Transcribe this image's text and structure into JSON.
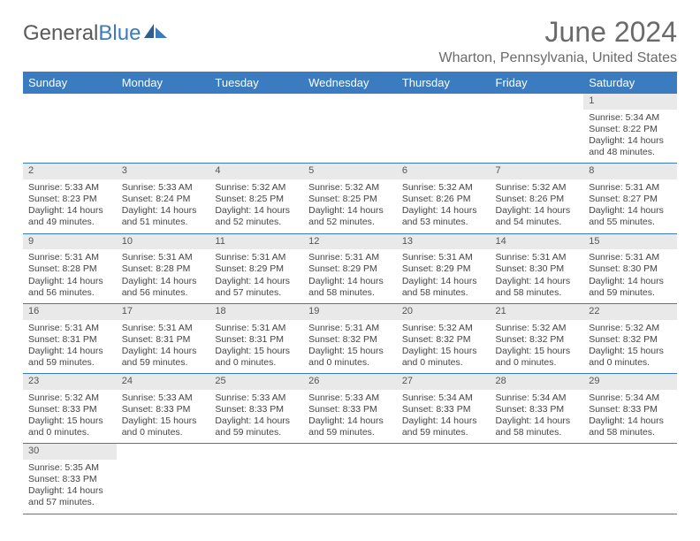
{
  "logo": {
    "part1": "General",
    "part2": "Blue"
  },
  "title": "June 2024",
  "location": "Wharton, Pennsylvania, United States",
  "colors": {
    "header_bg": "#3b7bbf",
    "header_text": "#ffffff",
    "daynum_bg": "#e9e9e9",
    "cell_border": "#3b7bbf",
    "text": "#444444",
    "title_text": "#6a6a6a"
  },
  "weekdays": [
    "Sunday",
    "Monday",
    "Tuesday",
    "Wednesday",
    "Thursday",
    "Friday",
    "Saturday"
  ],
  "weeks": [
    {
      "days": [
        null,
        null,
        null,
        null,
        null,
        null,
        {
          "n": "1",
          "sunrise": "Sunrise: 5:34 AM",
          "sunset": "Sunset: 8:22 PM",
          "daylight": "Daylight: 14 hours and 48 minutes."
        }
      ]
    },
    {
      "days": [
        {
          "n": "2",
          "sunrise": "Sunrise: 5:33 AM",
          "sunset": "Sunset: 8:23 PM",
          "daylight": "Daylight: 14 hours and 49 minutes."
        },
        {
          "n": "3",
          "sunrise": "Sunrise: 5:33 AM",
          "sunset": "Sunset: 8:24 PM",
          "daylight": "Daylight: 14 hours and 51 minutes."
        },
        {
          "n": "4",
          "sunrise": "Sunrise: 5:32 AM",
          "sunset": "Sunset: 8:25 PM",
          "daylight": "Daylight: 14 hours and 52 minutes."
        },
        {
          "n": "5",
          "sunrise": "Sunrise: 5:32 AM",
          "sunset": "Sunset: 8:25 PM",
          "daylight": "Daylight: 14 hours and 52 minutes."
        },
        {
          "n": "6",
          "sunrise": "Sunrise: 5:32 AM",
          "sunset": "Sunset: 8:26 PM",
          "daylight": "Daylight: 14 hours and 53 minutes."
        },
        {
          "n": "7",
          "sunrise": "Sunrise: 5:32 AM",
          "sunset": "Sunset: 8:26 PM",
          "daylight": "Daylight: 14 hours and 54 minutes."
        },
        {
          "n": "8",
          "sunrise": "Sunrise: 5:31 AM",
          "sunset": "Sunset: 8:27 PM",
          "daylight": "Daylight: 14 hours and 55 minutes."
        }
      ]
    },
    {
      "days": [
        {
          "n": "9",
          "sunrise": "Sunrise: 5:31 AM",
          "sunset": "Sunset: 8:28 PM",
          "daylight": "Daylight: 14 hours and 56 minutes."
        },
        {
          "n": "10",
          "sunrise": "Sunrise: 5:31 AM",
          "sunset": "Sunset: 8:28 PM",
          "daylight": "Daylight: 14 hours and 56 minutes."
        },
        {
          "n": "11",
          "sunrise": "Sunrise: 5:31 AM",
          "sunset": "Sunset: 8:29 PM",
          "daylight": "Daylight: 14 hours and 57 minutes."
        },
        {
          "n": "12",
          "sunrise": "Sunrise: 5:31 AM",
          "sunset": "Sunset: 8:29 PM",
          "daylight": "Daylight: 14 hours and 58 minutes."
        },
        {
          "n": "13",
          "sunrise": "Sunrise: 5:31 AM",
          "sunset": "Sunset: 8:29 PM",
          "daylight": "Daylight: 14 hours and 58 minutes."
        },
        {
          "n": "14",
          "sunrise": "Sunrise: 5:31 AM",
          "sunset": "Sunset: 8:30 PM",
          "daylight": "Daylight: 14 hours and 58 minutes."
        },
        {
          "n": "15",
          "sunrise": "Sunrise: 5:31 AM",
          "sunset": "Sunset: 8:30 PM",
          "daylight": "Daylight: 14 hours and 59 minutes."
        }
      ]
    },
    {
      "days": [
        {
          "n": "16",
          "sunrise": "Sunrise: 5:31 AM",
          "sunset": "Sunset: 8:31 PM",
          "daylight": "Daylight: 14 hours and 59 minutes."
        },
        {
          "n": "17",
          "sunrise": "Sunrise: 5:31 AM",
          "sunset": "Sunset: 8:31 PM",
          "daylight": "Daylight: 14 hours and 59 minutes."
        },
        {
          "n": "18",
          "sunrise": "Sunrise: 5:31 AM",
          "sunset": "Sunset: 8:31 PM",
          "daylight": "Daylight: 15 hours and 0 minutes."
        },
        {
          "n": "19",
          "sunrise": "Sunrise: 5:31 AM",
          "sunset": "Sunset: 8:32 PM",
          "daylight": "Daylight: 15 hours and 0 minutes."
        },
        {
          "n": "20",
          "sunrise": "Sunrise: 5:32 AM",
          "sunset": "Sunset: 8:32 PM",
          "daylight": "Daylight: 15 hours and 0 minutes."
        },
        {
          "n": "21",
          "sunrise": "Sunrise: 5:32 AM",
          "sunset": "Sunset: 8:32 PM",
          "daylight": "Daylight: 15 hours and 0 minutes."
        },
        {
          "n": "22",
          "sunrise": "Sunrise: 5:32 AM",
          "sunset": "Sunset: 8:32 PM",
          "daylight": "Daylight: 15 hours and 0 minutes."
        }
      ]
    },
    {
      "days": [
        {
          "n": "23",
          "sunrise": "Sunrise: 5:32 AM",
          "sunset": "Sunset: 8:33 PM",
          "daylight": "Daylight: 15 hours and 0 minutes."
        },
        {
          "n": "24",
          "sunrise": "Sunrise: 5:33 AM",
          "sunset": "Sunset: 8:33 PM",
          "daylight": "Daylight: 15 hours and 0 minutes."
        },
        {
          "n": "25",
          "sunrise": "Sunrise: 5:33 AM",
          "sunset": "Sunset: 8:33 PM",
          "daylight": "Daylight: 14 hours and 59 minutes."
        },
        {
          "n": "26",
          "sunrise": "Sunrise: 5:33 AM",
          "sunset": "Sunset: 8:33 PM",
          "daylight": "Daylight: 14 hours and 59 minutes."
        },
        {
          "n": "27",
          "sunrise": "Sunrise: 5:34 AM",
          "sunset": "Sunset: 8:33 PM",
          "daylight": "Daylight: 14 hours and 59 minutes."
        },
        {
          "n": "28",
          "sunrise": "Sunrise: 5:34 AM",
          "sunset": "Sunset: 8:33 PM",
          "daylight": "Daylight: 14 hours and 58 minutes."
        },
        {
          "n": "29",
          "sunrise": "Sunrise: 5:34 AM",
          "sunset": "Sunset: 8:33 PM",
          "daylight": "Daylight: 14 hours and 58 minutes."
        }
      ]
    },
    {
      "days": [
        {
          "n": "30",
          "sunrise": "Sunrise: 5:35 AM",
          "sunset": "Sunset: 8:33 PM",
          "daylight": "Daylight: 14 hours and 57 minutes."
        },
        null,
        null,
        null,
        null,
        null,
        null
      ]
    }
  ]
}
